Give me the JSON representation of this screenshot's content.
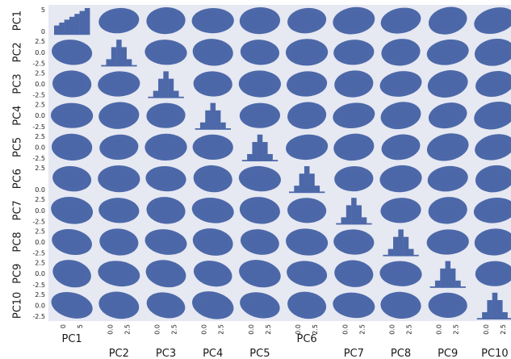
{
  "chart_data": {
    "type": "scatter",
    "variables": [
      "PC1",
      "PC2",
      "PC3",
      "PC4",
      "PC5",
      "PC6",
      "PC7",
      "PC8",
      "PC9",
      "PC10"
    ],
    "y_tick_labels": [
      [
        "5",
        "0"
      ],
      [
        "2.5",
        "0.0",
        "-2.5"
      ],
      [
        "2.5",
        "0.0",
        "-2.5"
      ],
      [
        "2.5",
        "0.0",
        "-2.5"
      ],
      [
        "2.5",
        "0.0",
        "-2.5"
      ],
      [
        "2.5",
        "0.0"
      ],
      [
        "2.5",
        "0.0",
        "-2.5"
      ],
      [
        "2.5",
        "0.0",
        "-2.5"
      ],
      [
        "2.5",
        "0.0",
        "-2.5"
      ],
      [
        "2.5",
        "0.0",
        "-2.5"
      ]
    ],
    "x_tick_labels": [
      [
        "0",
        "5"
      ],
      [
        "0.0",
        "2.5"
      ],
      [
        "0.0",
        "2.5"
      ],
      [
        "0.0",
        "2.5"
      ],
      [
        "0.0",
        "2.5"
      ],
      [
        "0.0",
        "2.5"
      ],
      [
        "0.0",
        "2.5"
      ],
      [
        "0.0",
        "2.5"
      ],
      [
        "0.0",
        "2.5"
      ],
      [
        "0.0",
        "2.5"
      ]
    ],
    "diagonal": "histogram",
    "off_diagonal": "scatter",
    "point_color": "#4c68a8",
    "background_color": "#e6e8f2"
  }
}
